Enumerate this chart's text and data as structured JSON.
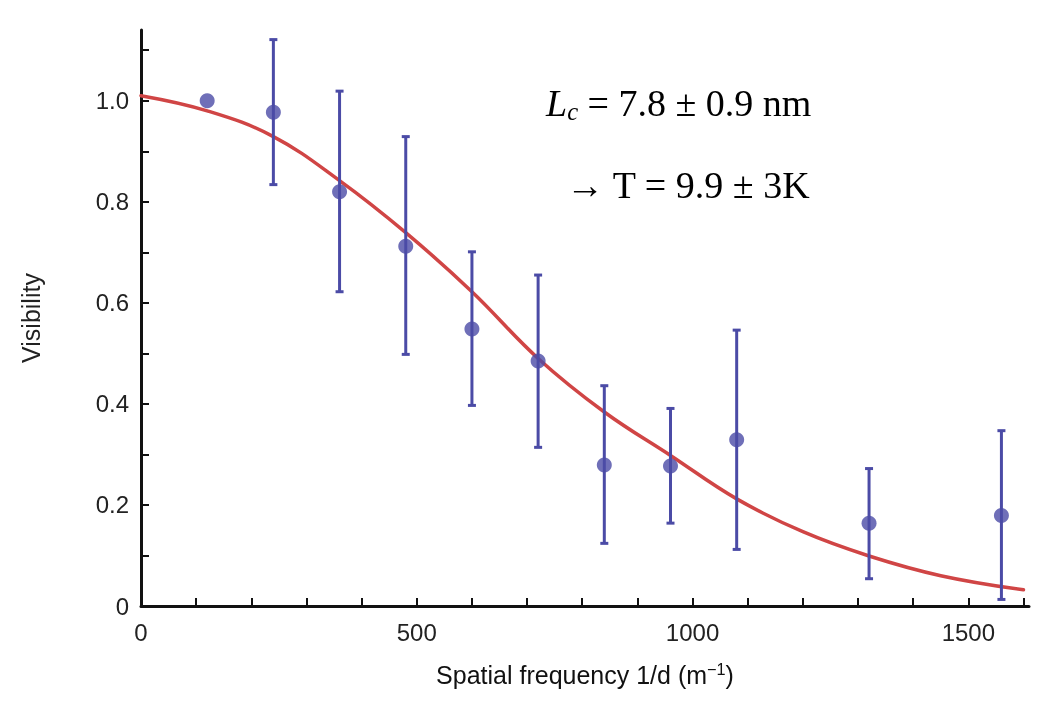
{
  "chart_data": {
    "type": "scatter",
    "xlabel": "Spatial frequency 1/d (m$^{−1}$)",
    "ylabel": "Visibility",
    "xlim": [
      0,
      1610
    ],
    "ylim": [
      0,
      1.14
    ],
    "xticks": [
      0,
      {
        "value": 100,
        "label": null
      },
      {
        "value": 200,
        "label": null
      },
      {
        "value": 300,
        "label": null
      },
      {
        "value": 400,
        "label": null
      },
      500,
      {
        "value": 600,
        "label": null
      },
      {
        "value": 700,
        "label": null
      },
      {
        "value": 800,
        "label": null
      },
      {
        "value": 900,
        "label": null
      },
      1000,
      {
        "value": 1100,
        "label": null
      },
      {
        "value": 1200,
        "label": null
      },
      {
        "value": 1300,
        "label": null
      },
      {
        "value": 1400,
        "label": null
      },
      1500,
      {
        "value": 1600,
        "label": null
      }
    ],
    "yticks": [
      0,
      {
        "value": 0.1,
        "label": null
      },
      0.2,
      {
        "value": 0.3,
        "label": null
      },
      0.4,
      {
        "value": 0.5,
        "label": null
      },
      0.6,
      {
        "value": 0.7,
        "label": null
      },
      0.8,
      {
        "value": 0.9,
        "label": null
      },
      {
        "value": 1.0,
        "label": "1.0"
      },
      {
        "value": 1.1,
        "label": null
      }
    ],
    "grid": false,
    "marker": "circle",
    "series": [
      {
        "color": "#4b4ba6",
        "x": [
          120,
          240,
          360,
          480,
          600,
          720,
          840,
          960,
          1080,
          1320,
          1560
        ],
        "values": [
          1.0,
          0.977,
          0.82,
          0.712,
          0.548,
          0.485,
          0.279,
          0.277,
          0.329,
          0.164,
          0.179
        ],
        "errors": [
          null,
          [
            0.834,
            1.121
          ],
          [
            0.622,
            1.019
          ],
          [
            0.498,
            0.929
          ],
          [
            0.397,
            0.701
          ],
          [
            0.314,
            0.655
          ],
          [
            0.124,
            0.436
          ],
          [
            0.164,
            0.391
          ],
          [
            0.112,
            0.546
          ],
          [
            0.054,
            0.272
          ],
          [
            0.013,
            0.347
          ]
        ]
      },
      {
        "type": "line",
        "color": "#d04545",
        "marker": "none",
        "line_style": "solid",
        "x": [
          0,
          120,
          240,
          360,
          480,
          600,
          720,
          840,
          960,
          1080,
          1200,
          1320,
          1450,
          1600
        ],
        "values": [
          1.01,
          0.98,
          0.929,
          0.842,
          0.739,
          0.622,
          0.49,
          0.384,
          0.298,
          0.212,
          0.147,
          0.099,
          0.06,
          0.032
        ]
      }
    ],
    "annotations": [
      "L$_{c}$ = 7.8 ± 0.9 nm",
      "→ T = 9.9 ± 3K"
    ]
  }
}
